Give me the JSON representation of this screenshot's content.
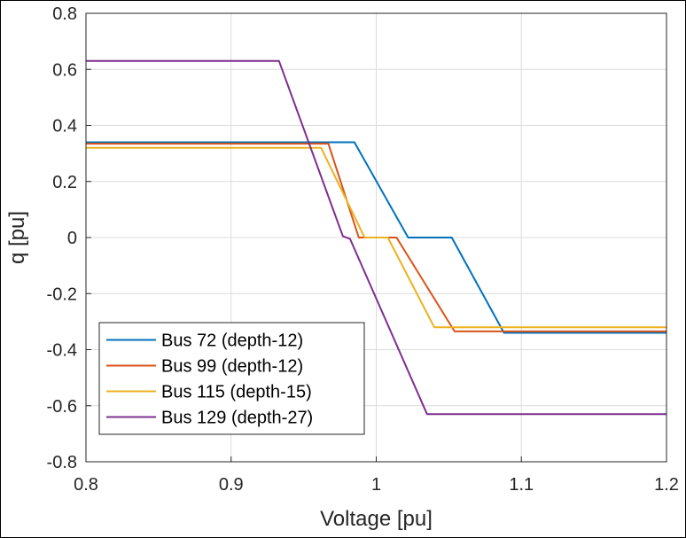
{
  "chart_data": {
    "type": "line",
    "title": "",
    "xlabel": "Voltage [pu]",
    "ylabel": "q [pu]",
    "xlim": [
      0.8,
      1.2
    ],
    "ylim": [
      -0.8,
      0.8
    ],
    "xticks": [
      "0.8",
      "0.9",
      "1",
      "1.1",
      "1.2"
    ],
    "yticks": [
      "0.8",
      "0.6",
      "0.4",
      "0.2",
      "0",
      "-0.2",
      "-0.4",
      "-0.6",
      "-0.8"
    ],
    "grid": true,
    "legend_position": "bottom-left",
    "series": [
      {
        "name": "Bus 72 (depth-12)",
        "color": "#0072BD",
        "x": [
          0.8,
          0.985,
          1.022,
          1.052,
          1.088,
          1.2
        ],
        "y": [
          0.34,
          0.34,
          0.0,
          0.0,
          -0.34,
          -0.34
        ]
      },
      {
        "name": "Bus 99 (depth-12)",
        "color": "#D95319",
        "x": [
          0.8,
          0.967,
          0.988,
          1.014,
          1.054,
          1.2
        ],
        "y": [
          0.335,
          0.335,
          0.0,
          0.0,
          -0.335,
          -0.335
        ]
      },
      {
        "name": "Bus 115 (depth-15)",
        "color": "#EDB120",
        "x": [
          0.8,
          0.962,
          0.992,
          1.008,
          1.04,
          1.2
        ],
        "y": [
          0.32,
          0.32,
          0.0,
          0.0,
          -0.32,
          -0.32
        ]
      },
      {
        "name": "Bus 129 (depth-27)",
        "color": "#7E2F8E",
        "x": [
          0.8,
          0.933,
          0.977,
          0.982,
          1.035,
          1.2
        ],
        "y": [
          0.63,
          0.63,
          0.005,
          -0.005,
          -0.63,
          -0.63
        ]
      }
    ]
  }
}
